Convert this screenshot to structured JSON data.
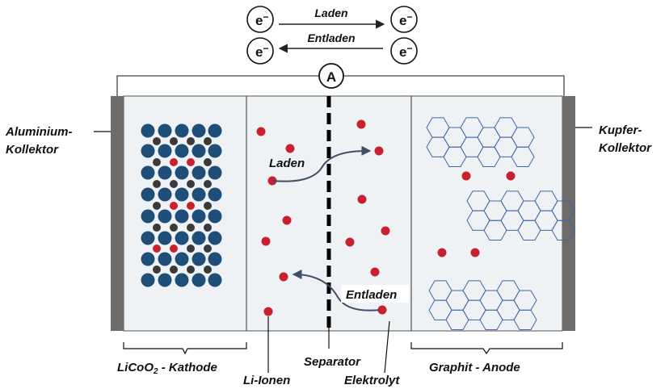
{
  "colors": {
    "background": "#ffffff",
    "cell_fill": "#eef2f4",
    "cell_stroke": "#555555",
    "collector": "#6e6b6b",
    "cathode_blue": "#1f4e79",
    "cathode_dark": "#3a3a3a",
    "li_ion_red": "#c8202f",
    "graphite_blue": "#3f68a8",
    "arrow": "#3f4d66",
    "separator": "#000000"
  },
  "electrons": {
    "symbol": "e",
    "charge": "−",
    "charge_label": "Laden",
    "discharge_label": "Entladen"
  },
  "ammeter": {
    "label": "A"
  },
  "labels": {
    "left_collector_line1": "Aluminium-",
    "left_collector_line2": "Kollektor",
    "right_collector_line1": "Kupfer-",
    "right_collector_line2": "Kollektor",
    "cathode_main": "LiCoO",
    "cathode_sub": "2",
    "cathode_rest": " - Kathode",
    "anode": "Graphit - Anode",
    "separator": "Separator",
    "li_ions": "Li-Ionen",
    "electrolyte": "Elektrolyt",
    "flow_charge": "Laden",
    "flow_discharge": "Entladen"
  },
  "icons": {
    "ion": "li-ion-dot",
    "cathode_atom": "cobalt-oxide-atom",
    "graphite": "graphite-hexagon-layer"
  }
}
